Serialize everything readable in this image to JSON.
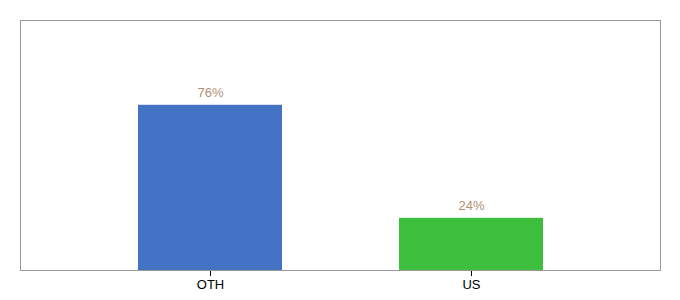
{
  "chart_data": {
    "type": "bar",
    "categories": [
      "OTH",
      "US"
    ],
    "values": [
      76,
      24
    ],
    "value_labels": [
      "76%",
      "24%"
    ],
    "colors": [
      "#4472c4",
      "#3dbf3d"
    ],
    "ylim": [
      0,
      115
    ],
    "data_labels": true,
    "tick_labels": "x",
    "grid": false
  }
}
